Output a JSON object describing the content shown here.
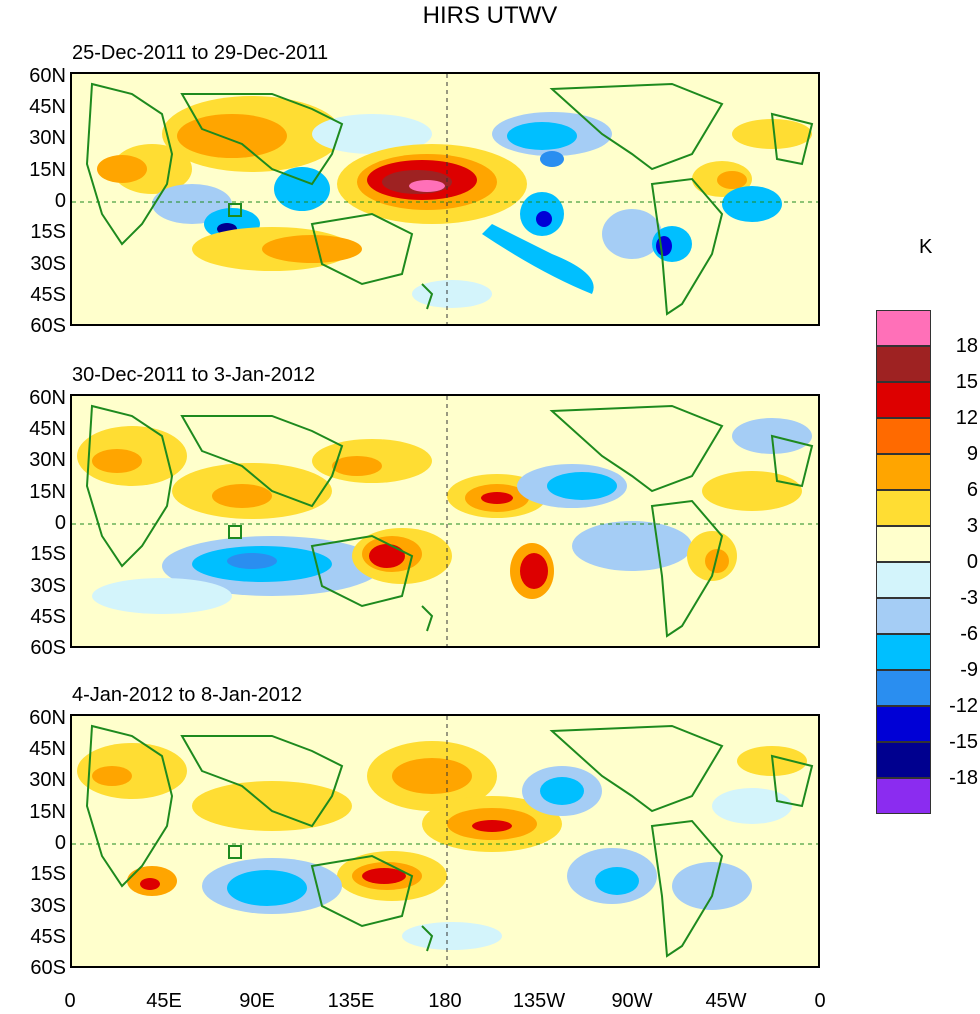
{
  "title": "HIRS UTWV",
  "colors": {
    "coast": "#1e8a1e",
    "scale": [
      "#8b2cf0",
      "#00008f",
      "#0000d6",
      "#2a8ef0",
      "#00bfff",
      "#a5cdf5",
      "#d3f4fb",
      "#ffffcc",
      "#ffdd33",
      "#ffa500",
      "#ff6a00",
      "#dd0000",
      "#9e2222",
      "#ff70b8"
    ]
  },
  "panels": [
    {
      "title": "25-Dec-2011 to 29-Dec-2011"
    },
    {
      "title": "30-Dec-2011 to 3-Jan-2012"
    },
    {
      "title": "4-Jan-2012 to 8-Jan-2012"
    }
  ],
  "lat_labels": [
    "60N",
    "45N",
    "30N",
    "15N",
    "0",
    "15S",
    "30S",
    "45S",
    "60S"
  ],
  "lon_labels": [
    "0",
    "45E",
    "90E",
    "135E",
    "180",
    "135W",
    "90W",
    "45W",
    "0"
  ],
  "colorbar": {
    "unit": "K",
    "labels": [
      "18",
      "15",
      "12",
      "9",
      "6",
      "3",
      "0",
      "-3",
      "-6",
      "-9",
      "-12",
      "-15",
      "-18"
    ]
  }
}
